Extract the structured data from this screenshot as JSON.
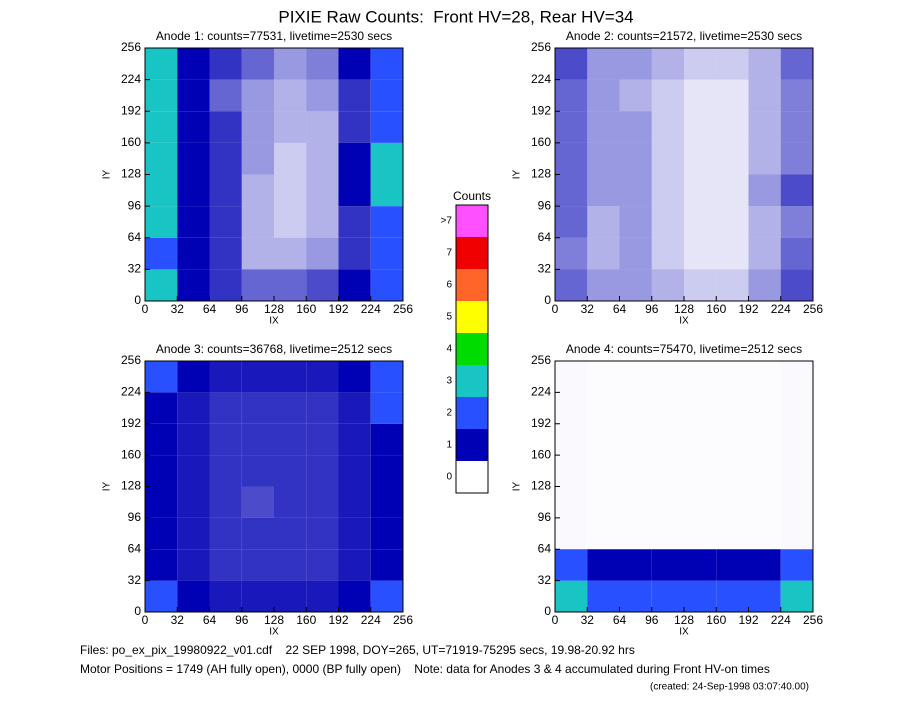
{
  "title": "PIXIE Raw Counts:  Front HV=28, Rear HV=34",
  "chart_data": [
    {
      "type": "heatmap",
      "title": "Anode 1: counts=77531, livetime=2530 secs",
      "xlabel": "IX",
      "ylabel": "IY",
      "xlim": [
        0,
        256
      ],
      "ylim": [
        0,
        256
      ],
      "xticks": [
        0,
        32,
        64,
        96,
        128,
        160,
        192,
        224,
        256
      ],
      "yticks": [
        0,
        32,
        64,
        96,
        128,
        160,
        192,
        224,
        256
      ],
      "values": [
        [
          2.5,
          1,
          0.8,
          0.6,
          0.6,
          0.7,
          1,
          2
        ],
        [
          2,
          1,
          0.8,
          0.3,
          0.3,
          0.4,
          0.8,
          2
        ],
        [
          2.5,
          1,
          0.8,
          0.3,
          0.2,
          0.3,
          0.8,
          2
        ],
        [
          2.5,
          1,
          0.8,
          0.3,
          0.2,
          0.3,
          1,
          3
        ],
        [
          2.5,
          1,
          0.8,
          0.4,
          0.2,
          0.3,
          1,
          3
        ],
        [
          2.5,
          1,
          0.8,
          0.4,
          0.3,
          0.3,
          0.8,
          2
        ],
        [
          2.5,
          1,
          0.6,
          0.4,
          0.3,
          0.4,
          0.8,
          2
        ],
        [
          3,
          1,
          0.8,
          0.6,
          0.4,
          0.5,
          1,
          2
        ]
      ]
    },
    {
      "type": "heatmap",
      "title": "Anode 2: counts=21572, livetime=2530 secs",
      "xlabel": "IX",
      "ylabel": "IY",
      "xlim": [
        0,
        256
      ],
      "ylim": [
        0,
        256
      ],
      "xticks": [
        0,
        32,
        64,
        96,
        128,
        160,
        192,
        224,
        256
      ],
      "yticks": [
        0,
        32,
        64,
        96,
        128,
        160,
        192,
        224,
        256
      ],
      "values": [
        [
          0.6,
          0.4,
          0.4,
          0.3,
          0.2,
          0.2,
          0.4,
          0.7
        ],
        [
          0.5,
          0.3,
          0.4,
          0.2,
          0.1,
          0.1,
          0.3,
          0.6
        ],
        [
          0.6,
          0.3,
          0.4,
          0.2,
          0.1,
          0.1,
          0.3,
          0.5
        ],
        [
          0.6,
          0.4,
          0.4,
          0.2,
          0.1,
          0.1,
          0.4,
          0.7
        ],
        [
          0.6,
          0.4,
          0.4,
          0.2,
          0.1,
          0.1,
          0.3,
          0.5
        ],
        [
          0.6,
          0.4,
          0.4,
          0.2,
          0.1,
          0.1,
          0.3,
          0.5
        ],
        [
          0.6,
          0.4,
          0.3,
          0.2,
          0.1,
          0.1,
          0.3,
          0.5
        ],
        [
          0.7,
          0.4,
          0.4,
          0.3,
          0.2,
          0.2,
          0.3,
          0.6
        ]
      ]
    },
    {
      "type": "heatmap",
      "title": "Anode 3: counts=36768, livetime=2512 secs",
      "xlabel": "IX",
      "ylabel": "IY",
      "xlim": [
        0,
        256
      ],
      "ylim": [
        0,
        256
      ],
      "xticks": [
        0,
        32,
        64,
        96,
        128,
        160,
        192,
        224,
        256
      ],
      "yticks": [
        0,
        32,
        64,
        96,
        128,
        160,
        192,
        224,
        256
      ],
      "values": [
        [
          1.1,
          1,
          0.9,
          0.9,
          0.9,
          0.9,
          1,
          1.1
        ],
        [
          1,
          0.9,
          0.8,
          0.8,
          0.8,
          0.8,
          0.9,
          1
        ],
        [
          1,
          0.9,
          0.8,
          0.8,
          0.8,
          0.8,
          0.9,
          1
        ],
        [
          1,
          0.9,
          0.8,
          0.7,
          0.8,
          0.8,
          0.9,
          1
        ],
        [
          1,
          0.9,
          0.8,
          0.8,
          0.8,
          0.8,
          0.9,
          1
        ],
        [
          1,
          0.9,
          0.8,
          0.8,
          0.8,
          0.8,
          0.9,
          1
        ],
        [
          1,
          0.9,
          0.8,
          0.8,
          0.8,
          0.8,
          0.9,
          1.1
        ],
        [
          1.1,
          1,
          0.9,
          0.9,
          0.9,
          0.9,
          1,
          1.1
        ]
      ]
    },
    {
      "type": "heatmap",
      "title": "Anode 4: counts=75470, livetime=2512 secs",
      "xlabel": "IX",
      "ylabel": "IY",
      "xlim": [
        0,
        256
      ],
      "ylim": [
        0,
        256
      ],
      "xticks": [
        0,
        32,
        64,
        96,
        128,
        160,
        192,
        224,
        256
      ],
      "yticks": [
        0,
        32,
        64,
        96,
        128,
        160,
        192,
        224,
        256
      ],
      "values": [
        [
          3,
          1.5,
          1.5,
          1.5,
          1.5,
          1.5,
          1.5,
          3
        ],
        [
          2,
          1,
          1,
          1,
          1,
          1,
          1,
          2
        ],
        [
          0.02,
          0.01,
          0.01,
          0.01,
          0.01,
          0.01,
          0.01,
          0.02
        ],
        [
          0.02,
          0.01,
          0.01,
          0.01,
          0.01,
          0.01,
          0.01,
          0.02
        ],
        [
          0.02,
          0.01,
          0.01,
          0.01,
          0.01,
          0.01,
          0.01,
          0.02
        ],
        [
          0.02,
          0.01,
          0.01,
          0.01,
          0.01,
          0.01,
          0.01,
          0.02
        ],
        [
          0.02,
          0.01,
          0.01,
          0.01,
          0.01,
          0.01,
          0.01,
          0.02
        ],
        [
          0.02,
          0.01,
          0.01,
          0.01,
          0.01,
          0.01,
          0.01,
          0.02
        ]
      ]
    }
  ],
  "colorbar": {
    "title": "Counts",
    "categories": [
      "0",
      "1",
      "2",
      "3",
      "4",
      "5",
      "6",
      "7",
      ">7"
    ],
    "colors": [
      "#ffffff",
      "#0000b4",
      "#2850ff",
      "#18c4c4",
      "#00dc00",
      "#ffff00",
      "#ff6428",
      "#f00000",
      "#ff50ff"
    ]
  },
  "footer": [
    "Files: po_ex_pix_19980922_v01.cdf    22 SEP 1998, DOY=265, UT=71919-75295 secs, 19.98-20.92 hrs",
    "Motor Positions = 1749 (AH fully open), 0000 (BP fully open)    Note: data for Anodes 3 & 4 accumulated during Front HV-on times",
    "(created: 24-Sep-1998 03:07:40.00)"
  ]
}
